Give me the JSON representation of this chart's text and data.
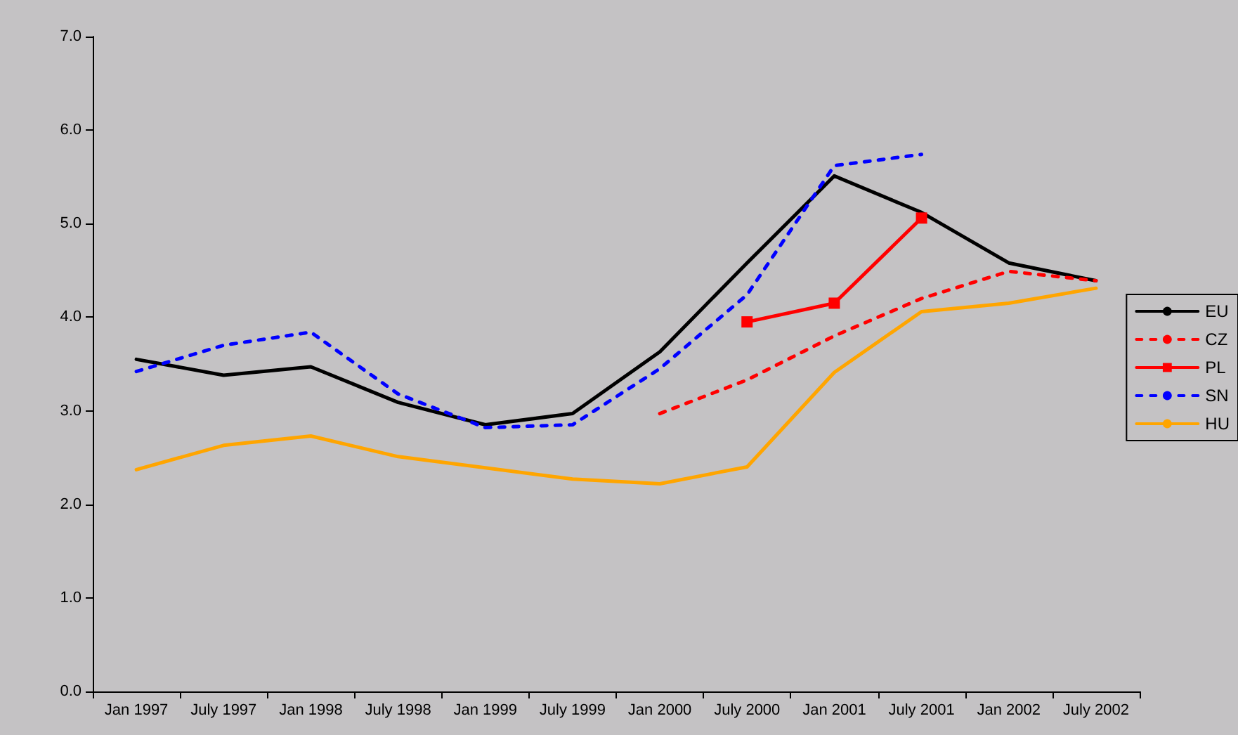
{
  "chart_data": {
    "type": "line",
    "categories": [
      "Jan 1997",
      "July 1997",
      "Jan 1998",
      "July 1998",
      "Jan 1999",
      "July 1999",
      "Jan 2000",
      "July 2000",
      "Jan 2001",
      "July 2001",
      "Jan 2002",
      "July 2002"
    ],
    "ylim": [
      0,
      7
    ],
    "yticks": [
      {
        "value": 0,
        "label": "0.0"
      },
      {
        "value": 1,
        "label": "1.0"
      },
      {
        "value": 2,
        "label": "2.0"
      },
      {
        "value": 3,
        "label": "3.0"
      },
      {
        "value": 4,
        "label": "4.0"
      },
      {
        "value": 5,
        "label": "5.0"
      },
      {
        "value": 6,
        "label": "6.0"
      },
      {
        "value": 7,
        "label": "7.0"
      }
    ],
    "grid": false,
    "legend": "right",
    "marker": "none",
    "series": [
      {
        "name": "EU",
        "color": "#000000",
        "line_style": "solid",
        "values": [
          3.55,
          3.38,
          3.47,
          3.09,
          2.85,
          2.97,
          3.63,
          4.58,
          5.51,
          5.12,
          4.58,
          4.39
        ]
      },
      {
        "name": "CZ",
        "color": "#ff0000",
        "line_style": "dashed",
        "values": [
          null,
          null,
          null,
          null,
          null,
          null,
          2.97,
          3.33,
          3.8,
          4.2,
          4.49,
          4.39
        ]
      },
      {
        "name": "PL",
        "color": "#ff0000",
        "line_style": "solid",
        "marker": "square",
        "values": [
          null,
          null,
          null,
          null,
          null,
          null,
          null,
          3.95,
          4.15,
          5.06,
          null,
          null
        ]
      },
      {
        "name": "SN",
        "color": "#0000ff",
        "line_style": "dashed",
        "values": [
          3.42,
          3.7,
          3.84,
          3.18,
          2.82,
          2.85,
          3.45,
          4.24,
          5.62,
          5.74,
          null,
          null
        ]
      },
      {
        "name": "HU",
        "color": "#ffa500",
        "line_style": "solid",
        "values": [
          2.37,
          2.63,
          2.73,
          2.51,
          2.39,
          2.27,
          2.22,
          2.4,
          3.41,
          4.06,
          4.15,
          4.31
        ]
      }
    ]
  }
}
